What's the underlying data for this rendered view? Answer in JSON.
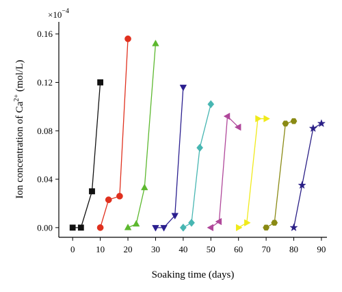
{
  "chart_data": {
    "type": "line",
    "xlabel": "Soaking time (days)",
    "ylabel_main": "Ion concentration of Ca",
    "ylabel_sup": "2+",
    "ylabel_unit": " (mol/L)",
    "y_scale_factor": "×10",
    "y_scale_exponent": "−4",
    "xlim": [
      -5,
      92
    ],
    "ylim": [
      -0.008,
      0.17
    ],
    "xticks": [
      0,
      10,
      20,
      30,
      40,
      50,
      60,
      70,
      80,
      90
    ],
    "yticks": [
      0.0,
      0.04,
      0.08,
      0.12,
      0.16
    ],
    "ytick_labels": [
      "0.00",
      "0.04",
      "0.08",
      "0.12",
      "0.16"
    ],
    "grid": false,
    "series": [
      {
        "marker": "square",
        "color": "#111111",
        "x": [
          0,
          3,
          7,
          10
        ],
        "y": [
          0.0,
          0.0,
          0.03,
          0.12
        ]
      },
      {
        "marker": "circle",
        "color": "#e0301e",
        "x": [
          10,
          13,
          17,
          20
        ],
        "y": [
          0.0,
          0.023,
          0.026,
          0.156
        ]
      },
      {
        "marker": "triangle-up",
        "color": "#5cb82e",
        "x": [
          20,
          23,
          26,
          30
        ],
        "y": [
          0.0,
          0.003,
          0.033,
          0.152
        ]
      },
      {
        "marker": "triangle-down",
        "color": "#2b1f8f",
        "x": [
          30,
          33,
          37,
          40
        ],
        "y": [
          0.0,
          0.0,
          0.01,
          0.116
        ]
      },
      {
        "marker": "diamond",
        "color": "#47b6b2",
        "x": [
          40,
          43,
          46,
          50
        ],
        "y": [
          0.0,
          0.004,
          0.066,
          0.102
        ]
      },
      {
        "marker": "triangle-left",
        "color": "#b0479a",
        "x": [
          50,
          53,
          56,
          60
        ],
        "y": [
          0.0,
          0.005,
          0.092,
          0.083
        ]
      },
      {
        "marker": "triangle-right",
        "color": "#f0ea1a",
        "x": [
          60,
          63,
          67,
          70
        ],
        "y": [
          0.0,
          0.004,
          0.09,
          0.09
        ]
      },
      {
        "marker": "hexagon",
        "color": "#8a8a14",
        "x": [
          70,
          73,
          77,
          80
        ],
        "y": [
          0.0,
          0.004,
          0.086,
          0.088
        ]
      },
      {
        "marker": "star",
        "color": "#2a1f86",
        "x": [
          80,
          83,
          87,
          90
        ],
        "y": [
          0.0,
          0.035,
          0.082,
          0.086
        ]
      }
    ]
  }
}
